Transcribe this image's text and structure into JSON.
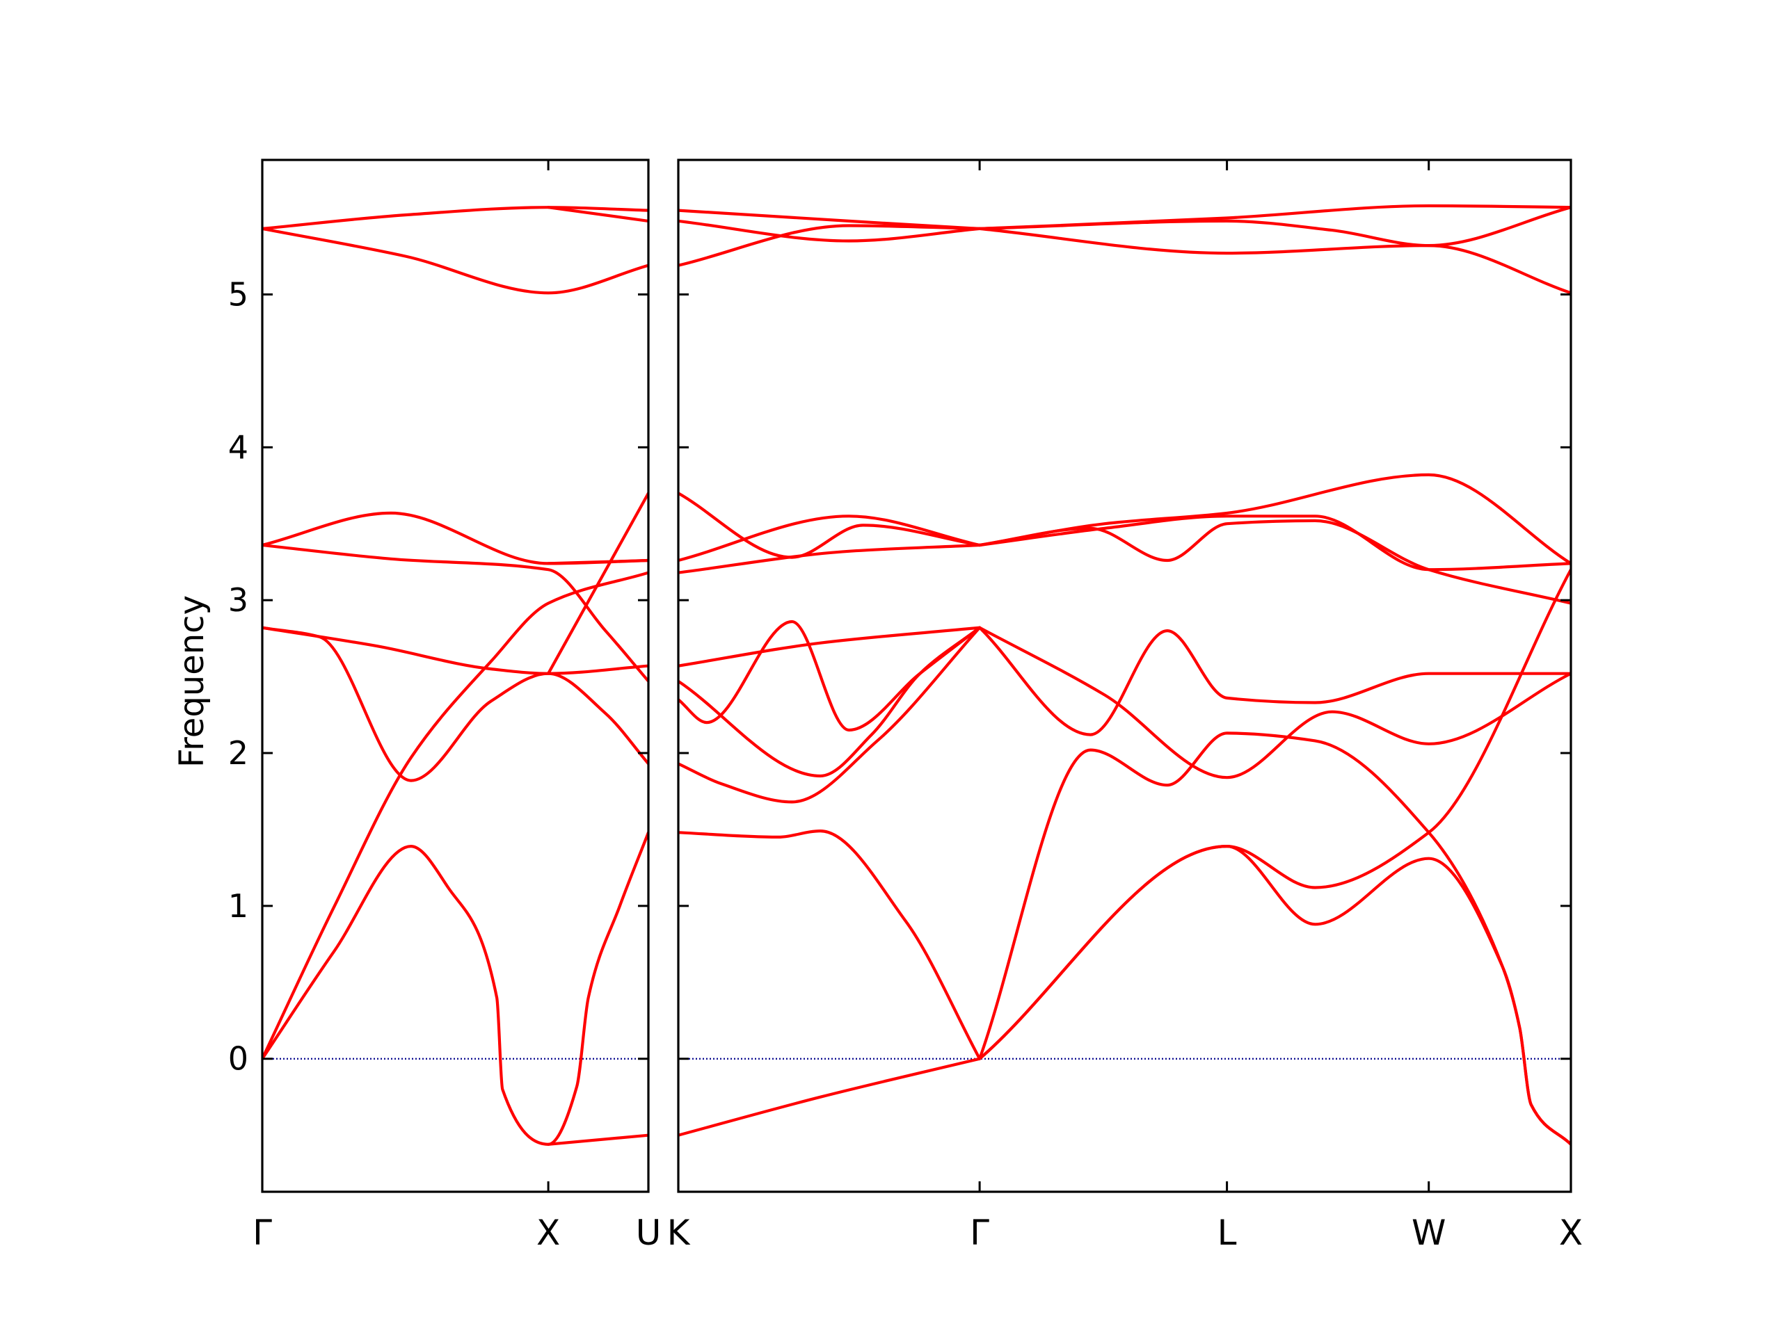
{
  "chart_data": {
    "type": "line",
    "title": "",
    "xlabel": "",
    "ylabel": "Frequency",
    "ylim": [
      -0.87,
      5.88
    ],
    "y_ticks": [
      0,
      1,
      2,
      3,
      4,
      5
    ],
    "y_tick_labels": [
      "0",
      "1",
      "2",
      "3",
      "4",
      "5"
    ],
    "zero_line": {
      "y": 0,
      "style": "dotted",
      "color": "#00008b"
    },
    "line_color": "#ff0000",
    "grid": false,
    "legend": "none",
    "panels": [
      {
        "x_ticks": [
          0,
          1,
          1.35
        ],
        "x_tick_labels": [
          "Γ",
          "X",
          "U"
        ],
        "xlim": [
          0,
          1.35
        ],
        "series": [
          {
            "values": [
              [
                0,
                0
              ],
              [
                0.25,
                0.7
              ],
              [
                0.52,
                1.39
              ],
              [
                0.65,
                1.12
              ],
              [
                0.82,
                0.4
              ],
              [
                0.84,
                -0.2
              ],
              [
                1.0,
                -0.56
              ],
              [
                1.1,
                -0.18
              ],
              [
                1.14,
                0.4
              ],
              [
                1.25,
                1.0
              ],
              [
                1.35,
                1.48
              ]
            ]
          },
          {
            "values": [
              [
                0,
                0
              ],
              [
                0.25,
                0.99
              ],
              [
                0.52,
                1.97
              ],
              [
                0.8,
                2.6
              ],
              [
                1.0,
                2.98
              ],
              [
                1.35,
                3.18
              ]
            ]
          },
          {
            "values": [
              [
                0,
                2.82
              ],
              [
                0.2,
                2.76
              ],
              [
                0.52,
                1.82
              ],
              [
                0.8,
                2.34
              ],
              [
                1.0,
                2.52
              ],
              [
                1.2,
                2.26
              ],
              [
                1.35,
                1.93
              ]
            ]
          },
          {
            "values": [
              [
                0,
                2.82
              ],
              [
                0.4,
                2.7
              ],
              [
                0.8,
                2.55
              ],
              [
                1.0,
                2.52
              ],
              [
                1.35,
                2.57
              ]
            ]
          },
          {
            "values": [
              [
                0,
                3.36
              ],
              [
                0.45,
                3.27
              ],
              [
                1.0,
                3.2
              ],
              [
                1.2,
                2.8
              ],
              [
                1.35,
                2.47
              ]
            ]
          },
          {
            "values": [
              [
                0,
                3.36
              ],
              [
                0.45,
                3.57
              ],
              [
                1.0,
                3.24
              ],
              [
                1.35,
                3.26
              ]
            ]
          },
          {
            "values": [
              [
                0,
                5.43
              ],
              [
                0.5,
                5.25
              ],
              [
                1.0,
                5.01
              ],
              [
                1.35,
                5.19
              ]
            ]
          },
          {
            "values": [
              [
                0,
                5.43
              ],
              [
                0.5,
                5.52
              ],
              [
                1.0,
                5.57
              ],
              [
                1.35,
                5.55
              ]
            ]
          },
          {
            "values": [
              [
                1.0,
                -0.56
              ],
              [
                1.35,
                -0.5
              ]
            ]
          },
          {
            "values": [
              [
                1.0,
                2.52
              ],
              [
                1.35,
                3.7
              ]
            ]
          },
          {
            "values": [
              [
                1.0,
                3.24
              ],
              [
                1.35,
                3.26
              ]
            ]
          },
          {
            "values": [
              [
                1.0,
                5.57
              ],
              [
                1.35,
                5.48
              ]
            ]
          }
        ]
      },
      {
        "x_ticks": [
          0,
          1.06,
          1.93,
          2.64,
          3.14
        ],
        "x_tick_labels": [
          "K",
          "Γ",
          "L",
          "W",
          "X"
        ],
        "xlim": [
          0,
          3.14
        ],
        "series": [
          {
            "values": [
              [
                0,
                -0.5
              ],
              [
                0.5,
                -0.25
              ],
              [
                1.06,
                0
              ]
            ]
          },
          {
            "values": [
              [
                0,
                1.48
              ],
              [
                0.35,
                1.45
              ],
              [
                0.5,
                1.49
              ],
              [
                0.8,
                0.9
              ],
              [
                1.06,
                0
              ]
            ]
          },
          {
            "values": [
              [
                0,
                1.93
              ],
              [
                0.15,
                1.8
              ],
              [
                0.4,
                1.68
              ],
              [
                0.7,
                2.08
              ],
              [
                1.06,
                2.82
              ]
            ]
          },
          {
            "values": [
              [
                0,
                2.47
              ],
              [
                0.5,
                1.85
              ],
              [
                0.68,
                2.12
              ],
              [
                0.85,
                2.52
              ],
              [
                1.06,
                2.82
              ]
            ]
          },
          {
            "values": [
              [
                0,
                2.35
              ],
              [
                0.1,
                2.2
              ],
              [
                0.4,
                2.86
              ],
              [
                0.6,
                2.15
              ],
              [
                0.85,
                2.52
              ],
              [
                1.06,
                2.82
              ]
            ]
          },
          {
            "values": [
              [
                0,
                2.57
              ],
              [
                0.5,
                2.72
              ],
              [
                1.06,
                2.82
              ]
            ]
          },
          {
            "values": [
              [
                0,
                3.18
              ],
              [
                0.6,
                3.32
              ],
              [
                1.06,
                3.36
              ]
            ]
          },
          {
            "values": [
              [
                0,
                3.26
              ],
              [
                0.6,
                3.55
              ],
              [
                1.06,
                3.36
              ]
            ]
          },
          {
            "values": [
              [
                0,
                3.7
              ],
              [
                0.4,
                3.28
              ],
              [
                0.65,
                3.49
              ],
              [
                1.06,
                3.36
              ]
            ]
          },
          {
            "values": [
              [
                0,
                5.19
              ],
              [
                0.6,
                5.45
              ],
              [
                1.06,
                5.43
              ]
            ]
          },
          {
            "values": [
              [
                0,
                5.48
              ],
              [
                0.6,
                5.35
              ],
              [
                1.06,
                5.43
              ]
            ]
          },
          {
            "values": [
              [
                0,
                5.55
              ],
              [
                0.6,
                5.48
              ],
              [
                1.06,
                5.43
              ]
            ]
          },
          {
            "values": [
              [
                1.06,
                0
              ],
              [
                1.93,
                1.39
              ],
              [
                2.24,
                0.88
              ],
              [
                2.64,
                1.31
              ],
              [
                2.9,
                0.6
              ],
              [
                2.96,
                0.2
              ],
              [
                3.0,
                -0.3
              ],
              [
                3.14,
                -0.56
              ]
            ]
          },
          {
            "values": [
              [
                1.06,
                0
              ],
              [
                1.93,
                1.39
              ],
              [
                2.24,
                1.12
              ],
              [
                2.64,
                1.48
              ],
              [
                3.14,
                3.2
              ]
            ]
          },
          {
            "values": [
              [
                1.06,
                0
              ],
              [
                1.45,
                2.02
              ],
              [
                1.72,
                1.79
              ],
              [
                1.93,
                2.13
              ],
              [
                2.24,
                2.08
              ],
              [
                2.64,
                1.48
              ],
              [
                2.9,
                0.6
              ],
              [
                2.96,
                0.2
              ],
              [
                3.0,
                -0.3
              ],
              [
                3.14,
                -0.56
              ]
            ]
          },
          {
            "values": [
              [
                1.06,
                2.82
              ],
              [
                1.45,
                2.12
              ],
              [
                1.72,
                2.8
              ],
              [
                1.93,
                2.36
              ],
              [
                2.24,
                2.33
              ],
              [
                2.64,
                2.52
              ],
              [
                3.14,
                2.52
              ]
            ]
          },
          {
            "values": [
              [
                1.06,
                2.82
              ],
              [
                1.5,
                2.38
              ],
              [
                1.93,
                1.84
              ],
              [
                2.3,
                2.27
              ],
              [
                2.64,
                2.06
              ],
              [
                3.14,
                2.52
              ]
            ]
          },
          {
            "values": [
              [
                1.06,
                3.36
              ],
              [
                1.45,
                3.47
              ],
              [
                1.72,
                3.26
              ],
              [
                1.93,
                3.5
              ],
              [
                2.24,
                3.52
              ],
              [
                2.64,
                3.2
              ],
              [
                3.14,
                2.98
              ]
            ]
          },
          {
            "values": [
              [
                1.06,
                3.36
              ],
              [
                1.5,
                3.47
              ],
              [
                1.93,
                3.55
              ],
              [
                2.24,
                3.55
              ],
              [
                2.64,
                3.2
              ],
              [
                3.14,
                3.24
              ]
            ]
          },
          {
            "values": [
              [
                1.06,
                3.36
              ],
              [
                1.5,
                3.5
              ],
              [
                1.93,
                3.57
              ],
              [
                2.64,
                3.82
              ],
              [
                3.14,
                3.24
              ]
            ]
          },
          {
            "values": [
              [
                1.06,
                5.43
              ],
              [
                1.93,
                5.27
              ],
              [
                2.64,
                5.32
              ],
              [
                3.14,
                5.01
              ]
            ]
          },
          {
            "values": [
              [
                1.06,
                5.43
              ],
              [
                1.93,
                5.48
              ],
              [
                2.3,
                5.42
              ],
              [
                2.64,
                5.32
              ],
              [
                3.14,
                5.57
              ]
            ]
          },
          {
            "values": [
              [
                1.06,
                5.43
              ],
              [
                1.93,
                5.5
              ],
              [
                2.64,
                5.58
              ],
              [
                3.14,
                5.57
              ]
            ]
          }
        ]
      }
    ]
  }
}
